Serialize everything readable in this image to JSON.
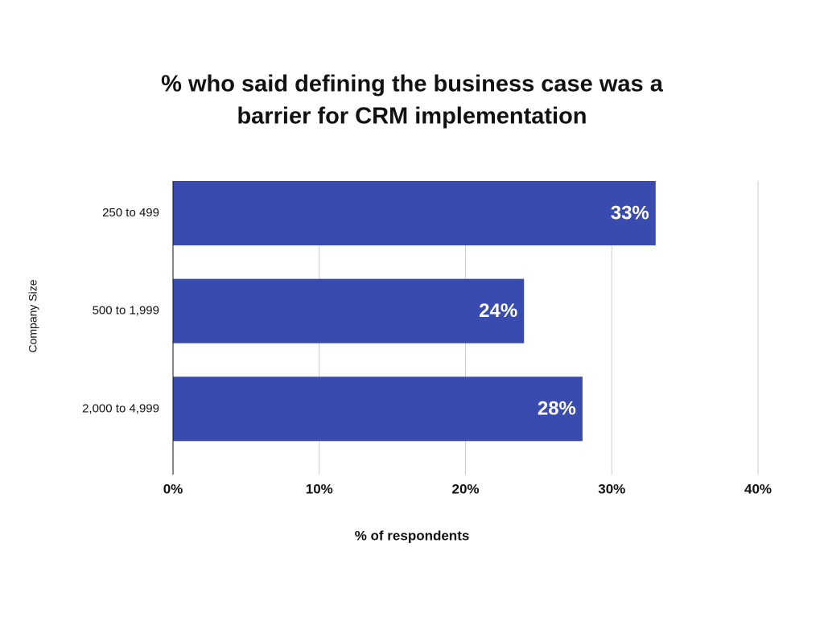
{
  "chart_data": {
    "type": "hbar",
    "title": [
      "% who said defining the business case was a",
      "barrier for CRM implementation"
    ],
    "x_label": "% of respondents",
    "y_label": "Company Size",
    "categories": [
      "250 to 499",
      "500 to 1,999",
      "2,000 to 4,999"
    ],
    "values": [
      33,
      24,
      28
    ],
    "value_labels": [
      "33%",
      "24%",
      "28%"
    ],
    "color": "#3a4bb0",
    "xlim": [
      0,
      40
    ],
    "xticks": [
      {
        "value": 0,
        "label": "0%"
      },
      {
        "value": 10,
        "label": "10%"
      },
      {
        "value": 20,
        "label": "20%"
      },
      {
        "value": 30,
        "label": "30%"
      },
      {
        "value": 40,
        "label": "40%"
      }
    ],
    "grid": true
  }
}
